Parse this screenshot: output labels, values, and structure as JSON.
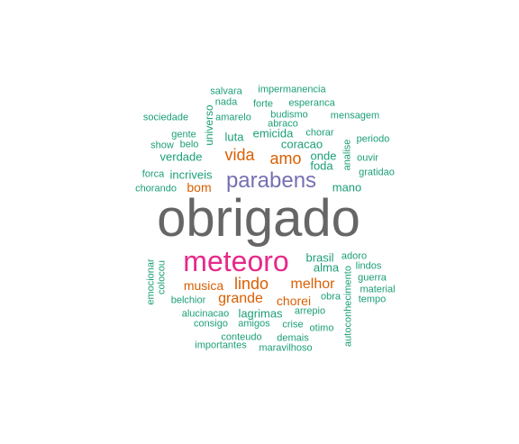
{
  "palette": {
    "gray": "#666666",
    "pink": "#e7298a",
    "purple": "#7570b3",
    "orange": "#d95f02",
    "green": "#1b9e77"
  },
  "words": {
    "obrigado": "obrigado",
    "meteoro": "meteoro",
    "parabens": "parabens",
    "vida": "vida",
    "amo": "amo",
    "lindo": "lindo",
    "melhor": "melhor",
    "grande": "grande",
    "musica": "musica",
    "chorei": "chorei",
    "bom": "bom",
    "salvara": "salvara",
    "impermanencia": "impermanencia",
    "nada": "nada",
    "forte": "forte",
    "esperanca": "esperanca",
    "sociedade": "sociedade",
    "amarelo": "amarelo",
    "budismo": "budismo",
    "mensagem": "mensagem",
    "universo": "universo",
    "abraco": "abraco",
    "gente": "gente",
    "luta": "luta",
    "emicida": "emicida",
    "chorar": "chorar",
    "periodo": "periodo",
    "show": "show",
    "belo": "belo",
    "coracao": "coracao",
    "verdade": "verdade",
    "onde": "onde",
    "ouvir": "ouvir",
    "foda": "foda",
    "analise": "analise",
    "forca": "forca",
    "incriveis": "incriveis",
    "gratidao": "gratidao",
    "chorando": "chorando",
    "mano": "mano",
    "brasil": "brasil",
    "adoro": "adoro",
    "emocionar": "emocionar",
    "colocou": "colocou",
    "alma": "alma",
    "lindos": "lindos",
    "guerra": "guerra",
    "material": "material",
    "belchior": "belchior",
    "obra": "obra",
    "tempo": "tempo",
    "alucinacao": "alucinacao",
    "lagrimas": "lagrimas",
    "arrepio": "arrepio",
    "consigo": "consigo",
    "amigos": "amigos",
    "crise": "crise",
    "otimo": "otimo",
    "autoconhecimento": "autoconhecimento",
    "conteudo": "conteudo",
    "demais": "demais",
    "importantes": "importantes",
    "maravilhoso": "maravilhoso"
  }
}
